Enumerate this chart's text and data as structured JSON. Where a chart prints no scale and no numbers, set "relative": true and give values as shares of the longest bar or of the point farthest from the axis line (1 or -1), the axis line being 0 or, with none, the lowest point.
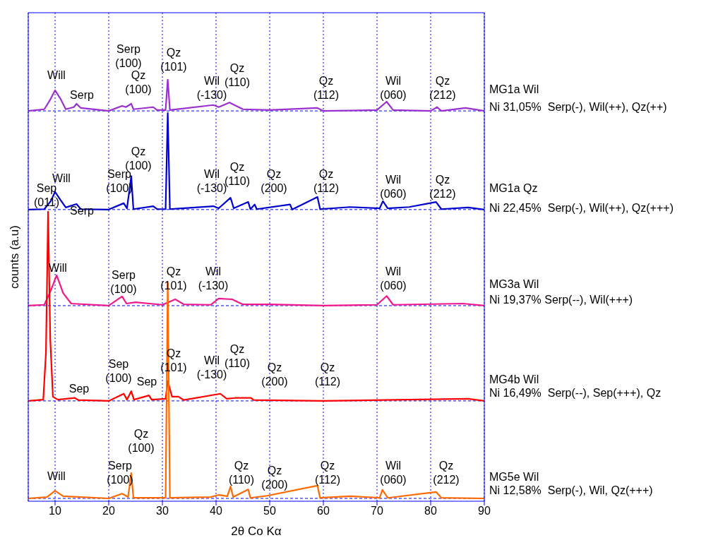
{
  "chart_data": {
    "type": "line",
    "relative": true,
    "xlabel": "2θ Co Kα",
    "ylabel": "counts (a.u)",
    "xlim": [
      5,
      90
    ],
    "xticks": [
      10,
      20,
      30,
      40,
      50,
      60,
      70,
      80,
      90
    ],
    "grid": "x",
    "legend": false,
    "marker": "none",
    "line_style": "solid",
    "tick_labels": "x",
    "series": [
      {
        "name": "MG1a Wil",
        "color": "#9b30d0",
        "x": [
          5,
          8,
          9.2,
          10,
          11,
          12,
          13.5,
          14,
          14.8,
          20,
          22.5,
          23.2,
          24.2,
          24.6,
          28.3,
          29,
          30.6,
          31,
          31.4,
          39.5,
          40.5,
          42.5,
          45,
          50,
          58.9,
          60,
          70,
          71.8,
          73,
          80,
          81.2,
          82,
          86.5,
          90
        ],
        "values": [
          0.926,
          0.93,
          0.955,
          0.975,
          0.955,
          0.93,
          0.935,
          0.943,
          0.933,
          0.926,
          0.938,
          0.935,
          0.943,
          0.93,
          0.935,
          0.928,
          0.928,
          1.0,
          0.928,
          0.94,
          0.935,
          0.946,
          0.93,
          0.928,
          0.933,
          0.926,
          0.928,
          0.948,
          0.928,
          0.926,
          0.935,
          0.926,
          0.933,
          0.926
        ]
      },
      {
        "name": "MG1a Qz",
        "color": "#0000cc",
        "x": [
          5,
          8,
          9.2,
          10,
          11,
          12,
          14,
          14.8,
          20,
          22.8,
          23.4,
          24.2,
          24.6,
          28.3,
          29,
          30.6,
          31,
          31.4,
          39.5,
          40.5,
          42.7,
          43.3,
          46,
          46.4,
          47.2,
          47.6,
          53.8,
          54.2,
          58.9,
          59.4,
          65,
          70.5,
          71.1,
          72,
          76,
          81,
          82,
          87,
          90
        ],
        "values": [
          0.692,
          0.693,
          0.712,
          0.734,
          0.715,
          0.697,
          0.705,
          0.693,
          0.692,
          0.707,
          0.695,
          0.771,
          0.693,
          0.7,
          0.693,
          0.693,
          0.921,
          0.693,
          0.7,
          0.695,
          0.72,
          0.695,
          0.71,
          0.693,
          0.704,
          0.693,
          0.704,
          0.692,
          0.722,
          0.693,
          0.698,
          0.695,
          0.712,
          0.695,
          0.698,
          0.71,
          0.693,
          0.697,
          0.692
        ]
      },
      {
        "name": "MG3a Wil",
        "color": "#f0188c",
        "x": [
          5,
          8,
          9.3,
          10.3,
          11.5,
          13,
          20,
          22.5,
          23.3,
          25,
          30,
          32.4,
          34,
          39,
          40.5,
          43,
          45,
          50,
          60,
          70,
          71.8,
          73,
          86,
          90
        ],
        "values": [
          0.464,
          0.466,
          0.503,
          0.536,
          0.494,
          0.469,
          0.464,
          0.486,
          0.469,
          0.472,
          0.466,
          0.479,
          0.467,
          0.466,
          0.481,
          0.479,
          0.467,
          0.467,
          0.464,
          0.466,
          0.487,
          0.466,
          0.469,
          0.464
        ]
      },
      {
        "name": "MG4b Wil",
        "color": "#ff0000",
        "x": [
          5,
          7.8,
          8.3,
          8.7,
          9.1,
          9.6,
          10.5,
          13.7,
          14.3,
          20,
          22.8,
          23.4,
          24.2,
          24.7,
          27.5,
          28,
          30.6,
          31,
          31.8,
          33,
          34,
          40.8,
          42,
          43.5,
          46.5,
          47,
          60,
          87,
          90
        ],
        "values": [
          0.238,
          0.241,
          0.352,
          0.687,
          0.385,
          0.248,
          0.241,
          0.245,
          0.24,
          0.238,
          0.255,
          0.241,
          0.261,
          0.241,
          0.251,
          0.241,
          0.243,
          0.285,
          0.248,
          0.248,
          0.24,
          0.255,
          0.243,
          0.245,
          0.245,
          0.24,
          0.238,
          0.243,
          0.238
        ]
      },
      {
        "name": "MG5e Wil",
        "color": "#ff6a00",
        "x": [
          5,
          8.5,
          10,
          11.5,
          20,
          22.5,
          23.6,
          24.2,
          24.6,
          30.6,
          31,
          31.4,
          39,
          40.5,
          42.1,
          42.7,
          43.2,
          46,
          46.4,
          49.5,
          58.9,
          59.4,
          65,
          70.5,
          71,
          72,
          81,
          82,
          90
        ],
        "values": [
          0.0067,
          0.01,
          0.025,
          0.012,
          0.0067,
          0.018,
          0.01,
          0.067,
          0.008,
          0.008,
          0.519,
          0.008,
          0.01,
          0.015,
          0.012,
          0.035,
          0.01,
          0.028,
          0.008,
          0.013,
          0.037,
          0.008,
          0.012,
          0.008,
          0.027,
          0.008,
          0.022,
          0.008,
          0.0067
        ]
      }
    ],
    "ref_lines": [
      {
        "axis": "y",
        "value": 0.926,
        "color": "#0000ff",
        "line_style": "dashed"
      },
      {
        "axis": "y",
        "value": 0.692,
        "color": "#0000ff",
        "line_style": "dashed"
      },
      {
        "axis": "y",
        "value": 0.464,
        "color": "#0000ff",
        "line_style": "dashed"
      },
      {
        "axis": "y",
        "value": 0.238,
        "color": "#0000ff",
        "line_style": "dashed"
      },
      {
        "axis": "y",
        "value": 0.0067,
        "color": "#0000ff",
        "line_style": "dashed"
      }
    ],
    "annotations": [
      "Will",
      "Serp",
      "Serp\n(100)",
      "Qz\n(100)",
      "Qz\n(101)",
      "Wil\n(-130)",
      "Qz\n(110)",
      "Qz\n(112)",
      "Wil\n(060)",
      "Qz\n(212)",
      "Ni 31,05%  Serp(-), Wil(++), Qz(++)",
      "Sep\n(011)",
      "Will",
      "Serp",
      "Serp\n(100)",
      "Qz\n(100)",
      "Wil\n(-130)",
      "Qz\n(110)",
      "Qz\n(200)",
      "Qz\n(112)",
      "Wil\n(060)",
      "Qz\n(212)",
      "Ni 22,45%  Serp(-), Wil(++), Qz(+++)",
      "Will",
      "Serp\n(100)",
      "Qz\n(101)",
      "Wil\n(-130)",
      "Wil\n(060)",
      "Ni 19,37% Serp(--), Wil(+++)",
      "Sep",
      "Sep\n(100)",
      "Sep",
      "Qz\n(101)",
      "Wil\n(-130)",
      "Qz\n(110)",
      "Qz\n(200)",
      "Qz\n(112)",
      "Ni 16,49%  Serp(--), Sep(+++), Qz",
      "Will",
      "Serp\n(100)",
      "Qz\n(100)",
      "Qz\n(110)",
      "Qz\n(200)",
      "Qz\n(112)",
      "Wil\n(060)",
      "Qz\n(212)",
      "Ni 12,58%  Serp(-), Wil, Qz(+++)"
    ]
  }
}
